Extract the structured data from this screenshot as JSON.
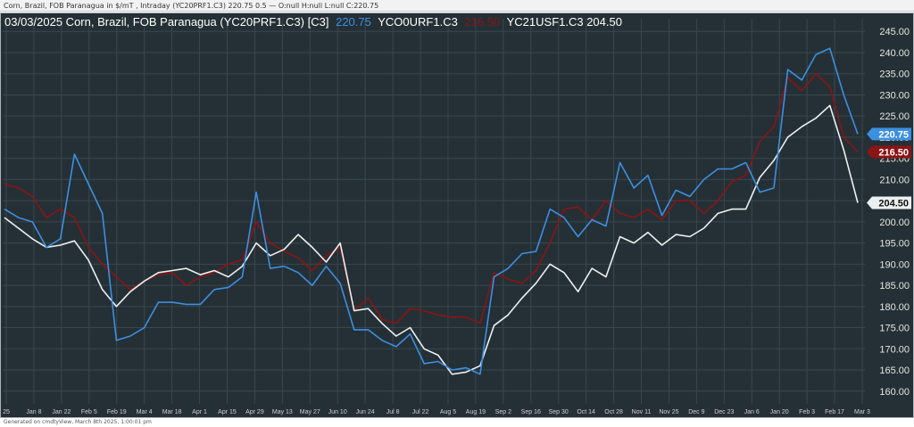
{
  "header": {
    "text": "Corn, Brazil, FOB Paranagua in $/mT , Intraday (YC20PRF1.C3) 220.75 0.5 — O:null H:null L:null C:220.75"
  },
  "footer": {
    "text": "Generated on cmdtyView, March 8th 2025, 1:00:01 pm"
  },
  "colors": {
    "background": "#243036",
    "grid": "#3a474e",
    "blue": "#3d8fe0",
    "red": "#8c1414",
    "white": "#ecf0f1"
  },
  "chart_data": {
    "type": "line",
    "title": "03/03/2025 Corn, Brazil, FOB Paranagua (YC20PRF1.C3) [C3]",
    "legend": [
      {
        "label": "220.75",
        "color": "#3d8fe0"
      },
      {
        "label": "YCO0URF1.C3",
        "color": "#ffffff"
      },
      {
        "label": "216.50",
        "color": "#8c1414"
      },
      {
        "label": "YC21USF1.C3 204.50",
        "color": "#ffffff"
      }
    ],
    "ylim": [
      157,
      248
    ],
    "yticks": [
      "160.00",
      "165.00",
      "170.00",
      "175.00",
      "180.00",
      "185.00",
      "190.00",
      "195.00",
      "200.00",
      "205.00",
      "210.00",
      "215.00",
      "220.00",
      "225.00",
      "230.00",
      "235.00",
      "240.00",
      "245.00"
    ],
    "xticks": [
      "25",
      "Jan 8",
      "Jan 22",
      "Feb 5",
      "Feb 19",
      "Mar 4",
      "Mar 18",
      "Apr 1",
      "Apr 15",
      "Apr 29",
      "May 13",
      "May 27",
      "Jun 10",
      "Jun 24",
      "Jul 8",
      "Jul 22",
      "Aug 5",
      "Aug 19",
      "Sep 2",
      "Sep 16",
      "Sep 30",
      "Oct 14",
      "Oct 28",
      "Nov 11",
      "Nov 25",
      "Dec 9",
      "Dec 23",
      "Jan 6",
      "Jan 20",
      "Feb 3",
      "Feb 17",
      "Mar 3"
    ],
    "series": [
      {
        "name": "YC20PRF1.C3",
        "color": "#3d8fe0",
        "last_label": "220.75",
        "values": [
          203,
          201,
          200,
          194,
          196,
          216,
          209,
          202,
          172,
          173,
          175,
          181,
          181,
          180.5,
          180.5,
          184,
          184.5,
          187,
          207,
          189,
          189.5,
          188,
          185,
          189.5,
          185.5,
          174.5,
          174.5,
          172,
          170.5,
          173.5,
          166.5,
          167,
          165,
          165.5,
          164,
          187,
          189,
          192.5,
          193,
          203,
          201,
          196.5,
          200.5,
          199,
          214,
          208,
          211,
          201.5,
          207.5,
          206,
          210,
          212.5,
          212.5,
          214,
          207,
          208,
          236,
          233.5,
          239.5,
          241,
          230,
          220.75
        ]
      },
      {
        "name": "YCO0URF1.C3",
        "color": "#8c1414",
        "last_label": "216.50",
        "values": [
          209,
          208,
          206,
          201,
          203,
          201,
          194,
          190,
          187,
          184,
          186,
          187.5,
          188,
          185,
          187,
          188,
          190,
          191,
          200,
          195,
          193,
          191.5,
          188.5,
          192,
          194,
          179,
          182,
          177,
          176,
          179.5,
          179,
          178,
          177.5,
          177.5,
          176,
          188,
          186.5,
          185.5,
          188.5,
          195,
          203,
          203.5,
          200.5,
          205,
          202,
          201,
          203,
          200.5,
          205,
          205,
          202,
          205,
          209.5,
          211,
          219,
          222.5,
          234,
          231,
          235,
          232,
          220,
          216.5
        ]
      },
      {
        "name": "YC21USF1.C3",
        "color": "#ecf0f1",
        "last_label": "204.50",
        "values": [
          201,
          198.5,
          196,
          194,
          194.5,
          195.5,
          191,
          184,
          180,
          183.5,
          186,
          188,
          188.5,
          189,
          187.5,
          188.5,
          187,
          189.5,
          195,
          192,
          193.5,
          197,
          194,
          190.5,
          195,
          179,
          179.5,
          176,
          173,
          175,
          170,
          168.5,
          164,
          164.5,
          166,
          175.5,
          178,
          182,
          185.5,
          190,
          188,
          183.5,
          189,
          187,
          196.5,
          195,
          197.5,
          194.5,
          197,
          196.5,
          198.5,
          202,
          203,
          203,
          210.5,
          214.5,
          220,
          222.5,
          224.5,
          227.5,
          217,
          204.5
        ]
      }
    ]
  }
}
